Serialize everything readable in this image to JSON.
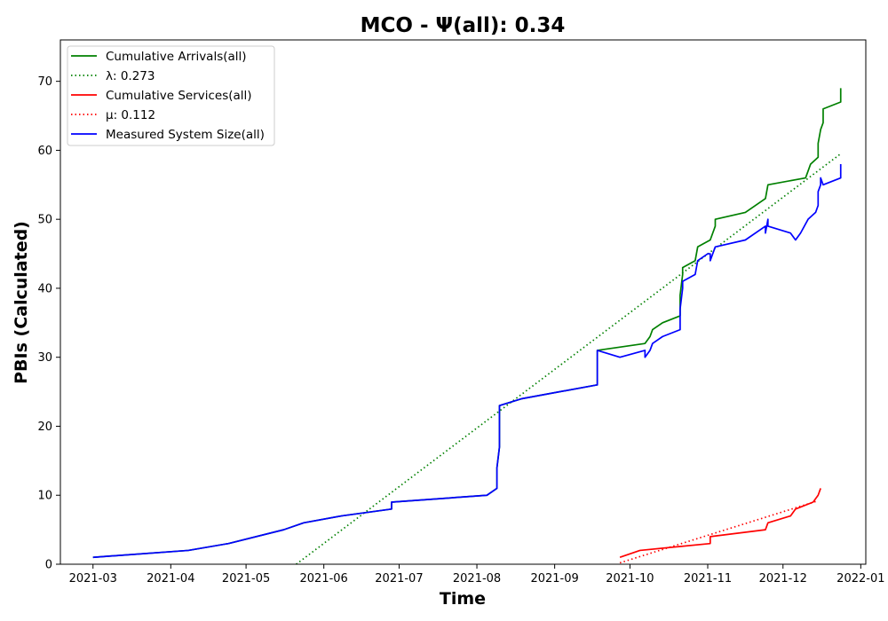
{
  "chart_data": {
    "type": "line",
    "title": "MCO -  Ψ(all): 0.34",
    "xlabel": "Time",
    "ylabel": "PBIs (Calculated)",
    "xlim": [
      "2021-02-16",
      "2022-01-03"
    ],
    "ylim": [
      0,
      76
    ],
    "xticks": [
      "2021-03",
      "2021-04",
      "2021-05",
      "2021-06",
      "2021-07",
      "2021-08",
      "2021-09",
      "2021-10",
      "2021-11",
      "2021-12",
      "2022-01"
    ],
    "yticks": [
      0,
      10,
      20,
      30,
      40,
      50,
      60,
      70
    ],
    "grid": false,
    "legend_position": "upper-left",
    "series": [
      {
        "name": "Cumulative Arrivals(all)",
        "color": "#008000",
        "style": "solid",
        "points": [
          [
            "2021-03-01",
            1
          ],
          [
            "2021-04-08",
            2
          ],
          [
            "2021-04-24",
            3
          ],
          [
            "2021-05-16",
            5
          ],
          [
            "2021-05-24",
            6
          ],
          [
            "2021-06-08",
            7
          ],
          [
            "2021-06-28",
            8
          ],
          [
            "2021-06-28",
            9
          ],
          [
            "2021-08-05",
            10
          ],
          [
            "2021-08-09",
            11
          ],
          [
            "2021-08-09",
            14
          ],
          [
            "2021-08-10",
            17
          ],
          [
            "2021-08-10",
            18
          ],
          [
            "2021-08-10",
            23
          ],
          [
            "2021-08-19",
            24
          ],
          [
            "2021-09-18",
            26
          ],
          [
            "2021-09-18",
            31
          ],
          [
            "2021-10-07",
            32
          ],
          [
            "2021-10-09",
            33
          ],
          [
            "2021-10-10",
            34
          ],
          [
            "2021-10-14",
            35
          ],
          [
            "2021-10-21",
            36
          ],
          [
            "2021-10-21",
            39
          ],
          [
            "2021-10-22",
            42
          ],
          [
            "2021-10-22",
            43
          ],
          [
            "2021-10-27",
            44
          ],
          [
            "2021-10-28",
            46
          ],
          [
            "2021-11-02",
            47
          ],
          [
            "2021-11-04",
            49
          ],
          [
            "2021-11-04",
            50
          ],
          [
            "2021-11-16",
            51
          ],
          [
            "2021-11-24",
            53
          ],
          [
            "2021-11-25",
            55
          ],
          [
            "2021-12-10",
            56
          ],
          [
            "2021-12-12",
            58
          ],
          [
            "2021-12-15",
            59
          ],
          [
            "2021-12-15",
            61
          ],
          [
            "2021-12-16",
            63
          ],
          [
            "2021-12-17",
            64
          ],
          [
            "2021-12-17",
            66
          ],
          [
            "2021-12-24",
            67
          ],
          [
            "2021-12-24",
            69
          ]
        ]
      },
      {
        "name": "λ: 0.273",
        "color": "#008000",
        "style": "dotted",
        "points": [
          [
            "2021-05-21",
            0
          ],
          [
            "2021-12-24",
            59.5
          ]
        ]
      },
      {
        "name": "Cumulative Services(all)",
        "color": "#ff0000",
        "style": "solid",
        "points": [
          [
            "2021-09-27",
            1
          ],
          [
            "2021-10-05",
            2
          ],
          [
            "2021-11-02",
            3
          ],
          [
            "2021-11-02",
            4
          ],
          [
            "2021-11-24",
            5
          ],
          [
            "2021-11-25",
            6
          ],
          [
            "2021-12-04",
            7
          ],
          [
            "2021-12-06",
            8
          ],
          [
            "2021-12-13",
            9
          ],
          [
            "2021-12-15",
            10
          ],
          [
            "2021-12-16",
            11
          ]
        ]
      },
      {
        "name": "μ: 0.112",
        "color": "#ff0000",
        "style": "dotted",
        "points": [
          [
            "2021-09-27",
            0.2
          ],
          [
            "2021-12-15",
            9.2
          ]
        ]
      },
      {
        "name": "Measured System Size(all)",
        "color": "#0000ff",
        "style": "solid",
        "points": [
          [
            "2021-03-01",
            1
          ],
          [
            "2021-04-08",
            2
          ],
          [
            "2021-04-24",
            3
          ],
          [
            "2021-05-16",
            5
          ],
          [
            "2021-05-24",
            6
          ],
          [
            "2021-06-08",
            7
          ],
          [
            "2021-06-28",
            8
          ],
          [
            "2021-06-28",
            9
          ],
          [
            "2021-08-05",
            10
          ],
          [
            "2021-08-09",
            11
          ],
          [
            "2021-08-09",
            14
          ],
          [
            "2021-08-10",
            17
          ],
          [
            "2021-08-10",
            18
          ],
          [
            "2021-08-10",
            23
          ],
          [
            "2021-08-19",
            24
          ],
          [
            "2021-09-18",
            26
          ],
          [
            "2021-09-18",
            31
          ],
          [
            "2021-09-27",
            30
          ],
          [
            "2021-10-07",
            31
          ],
          [
            "2021-10-07",
            30
          ],
          [
            "2021-10-09",
            31
          ],
          [
            "2021-10-10",
            32
          ],
          [
            "2021-10-14",
            33
          ],
          [
            "2021-10-21",
            34
          ],
          [
            "2021-10-21",
            37
          ],
          [
            "2021-10-22",
            40
          ],
          [
            "2021-10-22",
            41
          ],
          [
            "2021-10-27",
            42
          ],
          [
            "2021-10-28",
            44
          ],
          [
            "2021-11-01",
            45
          ],
          [
            "2021-11-02",
            45
          ],
          [
            "2021-11-02",
            44
          ],
          [
            "2021-11-04",
            46
          ],
          [
            "2021-11-16",
            47
          ],
          [
            "2021-11-24",
            49
          ],
          [
            "2021-11-24",
            48
          ],
          [
            "2021-11-25",
            50
          ],
          [
            "2021-11-25",
            49
          ],
          [
            "2021-12-04",
            48
          ],
          [
            "2021-12-06",
            47
          ],
          [
            "2021-12-08",
            48
          ],
          [
            "2021-12-11",
            50
          ],
          [
            "2021-12-14",
            51
          ],
          [
            "2021-12-15",
            52
          ],
          [
            "2021-12-15",
            54
          ],
          [
            "2021-12-16",
            55
          ],
          [
            "2021-12-16",
            56
          ],
          [
            "2021-12-17",
            55
          ],
          [
            "2021-12-24",
            56
          ],
          [
            "2021-12-24",
            58
          ]
        ]
      }
    ]
  }
}
